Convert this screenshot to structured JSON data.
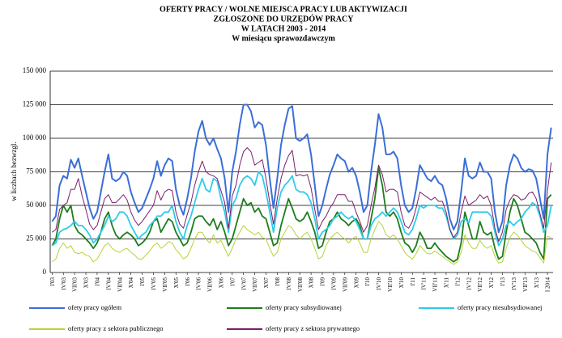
{
  "chart_data": {
    "type": "line",
    "title": [
      "OFERTY PRACY / WOLNE MIEJSCA  PRACY  LUB  AKTYWIZACJI",
      "ZGŁOSZONE  DO  URZĘDÓW  PRACY",
      "W  LATACH  2003 - 2014"
    ],
    "subtitle": "W  miesiącu  sprawozdawczym",
    "y_label": "w liczbach bezwzgl.",
    "categories": [
      "I'03",
      null,
      null,
      "IV'03",
      null,
      null,
      "VII'03",
      null,
      null,
      "X'03",
      null,
      null,
      "I'04",
      null,
      null,
      "IV'04",
      null,
      null,
      "VII'04",
      null,
      null,
      "X'04",
      null,
      null,
      "I'05",
      null,
      null,
      "IV'05",
      null,
      null,
      "VII'05",
      null,
      null,
      "X'05",
      null,
      null,
      "I'06",
      null,
      null,
      "IV'06",
      null,
      null,
      "VII'06",
      null,
      null,
      "X'06",
      null,
      null,
      "I'07",
      null,
      null,
      "IV'07",
      null,
      null,
      "VII'07",
      null,
      null,
      "X'07",
      null,
      null,
      "I'08",
      null,
      null,
      "IV'08",
      null,
      null,
      "VII'08",
      null,
      null,
      "X'08",
      null,
      null,
      "I'09",
      null,
      null,
      "IV'09",
      null,
      null,
      "VII'09",
      null,
      null,
      "X'09",
      null,
      null,
      "I'10",
      null,
      null,
      "IV'10",
      null,
      null,
      "VII'10",
      null,
      null,
      "X'10",
      null,
      null,
      "I'11",
      null,
      null,
      "IV'11",
      null,
      null,
      "VII'11",
      null,
      null,
      "X'11",
      null,
      null,
      "I'12",
      null,
      null,
      "IV'12",
      null,
      null,
      "VII'12",
      null,
      null,
      "X'12",
      null,
      null,
      "I'13",
      null,
      null,
      "IV'13",
      null,
      null,
      "VII'13",
      null,
      null,
      "X'13",
      null,
      null,
      "I 2014",
      null
    ],
    "series": [
      {
        "name": "ofety pracy ogółem",
        "color": "#3a6fd8",
        "values": [
          38000,
          42000,
          65000,
          72000,
          70000,
          84000,
          78000,
          85000,
          72000,
          60000,
          48000,
          40000,
          45000,
          60000,
          75000,
          88000,
          70000,
          68000,
          70000,
          75000,
          72000,
          60000,
          52000,
          45000,
          48000,
          55000,
          62000,
          70000,
          83000,
          72000,
          80000,
          85000,
          83000,
          62000,
          50000,
          43000,
          55000,
          70000,
          90000,
          105000,
          113000,
          100000,
          95000,
          100000,
          92000,
          85000,
          70000,
          45000,
          75000,
          90000,
          110000,
          125000,
          125000,
          120000,
          108000,
          112000,
          110000,
          95000,
          70000,
          48000,
          70000,
          95000,
          110000,
          122000,
          124000,
          100000,
          98000,
          100000,
          103000,
          88000,
          65000,
          42000,
          50000,
          62000,
          73000,
          80000,
          88000,
          85000,
          83000,
          75000,
          78000,
          72000,
          60000,
          45000,
          50000,
          75000,
          95000,
          118000,
          108000,
          88000,
          88000,
          90000,
          85000,
          65000,
          50000,
          45000,
          48000,
          62000,
          80000,
          75000,
          70000,
          68000,
          72000,
          67000,
          65000,
          55000,
          40000,
          32000,
          38000,
          60000,
          85000,
          72000,
          70000,
          72000,
          82000,
          75000,
          75000,
          70000,
          45000,
          30000,
          38000,
          65000,
          80000,
          88000,
          85000,
          78000,
          75000,
          77000,
          76000,
          70000,
          55000,
          40000,
          88000,
          108000
        ]
      },
      {
        "name": "oferty pracy subsydiowanej",
        "color": "#1e7d1e",
        "values": [
          20000,
          25000,
          40000,
          50000,
          45000,
          50000,
          35000,
          30000,
          28000,
          25000,
          22000,
          18000,
          22000,
          30000,
          40000,
          45000,
          35000,
          28000,
          25000,
          28000,
          30000,
          28000,
          25000,
          20000,
          22000,
          25000,
          30000,
          38000,
          40000,
          30000,
          35000,
          40000,
          38000,
          30000,
          25000,
          20000,
          22000,
          30000,
          40000,
          42000,
          42000,
          38000,
          35000,
          40000,
          32000,
          38000,
          30000,
          20000,
          25000,
          35000,
          45000,
          55000,
          50000,
          52000,
          45000,
          48000,
          42000,
          40000,
          30000,
          20000,
          22000,
          35000,
          45000,
          55000,
          48000,
          40000,
          38000,
          40000,
          45000,
          38000,
          30000,
          18000,
          20000,
          30000,
          38000,
          40000,
          45000,
          40000,
          38000,
          35000,
          38000,
          40000,
          35000,
          25000,
          25000,
          40000,
          55000,
          78000,
          65000,
          45000,
          42000,
          45000,
          40000,
          30000,
          22000,
          20000,
          15000,
          20000,
          30000,
          25000,
          18000,
          18000,
          22000,
          18000,
          15000,
          12000,
          10000,
          8000,
          10000,
          22000,
          45000,
          35000,
          25000,
          25000,
          38000,
          30000,
          28000,
          30000,
          18000,
          10000,
          12000,
          30000,
          45000,
          55000,
          50000,
          40000,
          30000,
          28000,
          25000,
          22000,
          15000,
          10000,
          55000,
          58000
        ]
      },
      {
        "name": "oferty pracy niesubsydiowanej",
        "color": "#2fcbea",
        "values": [
          20000,
          22000,
          30000,
          32000,
          33000,
          35000,
          38000,
          35000,
          35000,
          32000,
          28000,
          22000,
          25000,
          30000,
          35000,
          42000,
          38000,
          40000,
          45000,
          45000,
          42000,
          35000,
          30000,
          25000,
          28000,
          30000,
          35000,
          38000,
          42000,
          42000,
          45000,
          45000,
          50000,
          38000,
          30000,
          25000,
          35000,
          42000,
          52000,
          62000,
          70000,
          62000,
          60000,
          70000,
          68000,
          55000,
          45000,
          30000,
          50000,
          55000,
          65000,
          70000,
          72000,
          70000,
          65000,
          75000,
          72000,
          60000,
          45000,
          30000,
          48000,
          60000,
          65000,
          68000,
          72000,
          62000,
          60000,
          60000,
          58000,
          52000,
          40000,
          25000,
          30000,
          32000,
          35000,
          40000,
          42000,
          45000,
          42000,
          40000,
          42000,
          38000,
          32000,
          25000,
          25000,
          35000,
          40000,
          42000,
          45000,
          42000,
          45000,
          48000,
          45000,
          38000,
          30000,
          28000,
          32000,
          40000,
          50000,
          48000,
          50000,
          50000,
          50000,
          48000,
          48000,
          42000,
          32000,
          25000,
          28000,
          38000,
          40000,
          37000,
          45000,
          45000,
          45000,
          45000,
          45000,
          42000,
          30000,
          20000,
          25000,
          35000,
          38000,
          35000,
          38000,
          40000,
          45000,
          48000,
          52000,
          50000,
          42000,
          30000,
          35000,
          50000
        ]
      },
      {
        "name": "oferty pracy z sektora publicznego",
        "color": "#b5d43a",
        "values": [
          8000,
          10000,
          18000,
          22000,
          18000,
          20000,
          15000,
          14000,
          15000,
          13000,
          12000,
          8000,
          10000,
          15000,
          20000,
          22000,
          18000,
          16000,
          15000,
          17000,
          18000,
          15000,
          13000,
          10000,
          10000,
          13000,
          16000,
          20000,
          22000,
          18000,
          20000,
          23000,
          22000,
          17000,
          14000,
          10000,
          12000,
          18000,
          25000,
          30000,
          30000,
          25000,
          22000,
          28000,
          22000,
          24000,
          18000,
          12000,
          18000,
          25000,
          30000,
          35000,
          32000,
          30000,
          28000,
          30000,
          26000,
          25000,
          18000,
          12000,
          15000,
          25000,
          30000,
          35000,
          33000,
          28000,
          25000,
          28000,
          30000,
          25000,
          18000,
          10000,
          12000,
          20000,
          25000,
          28000,
          30000,
          27000,
          25000,
          22000,
          25000,
          27000,
          22000,
          15000,
          15000,
          25000,
          32000,
          38000,
          35000,
          28000,
          26000,
          28000,
          25000,
          20000,
          15000,
          12000,
          10000,
          14000,
          20000,
          17000,
          14000,
          14000,
          16000,
          14000,
          12000,
          10000,
          8000,
          6000,
          8000,
          15000,
          28000,
          22000,
          18000,
          18000,
          24000,
          20000,
          18000,
          20000,
          12000,
          7000,
          8000,
          18000,
          26000,
          30000,
          28000,
          24000,
          20000,
          18000,
          16000,
          15000,
          11000,
          7000,
          27000,
          26000
        ]
      },
      {
        "name": "oferty pracy z sektora prywatnego",
        "color": "#7a1f6b",
        "values": [
          30000,
          32000,
          47000,
          50000,
          52000,
          62000,
          62000,
          70000,
          57000,
          47000,
          36000,
          32000,
          35000,
          45000,
          55000,
          58000,
          52000,
          52000,
          55000,
          58000,
          54000,
          45000,
          39000,
          35000,
          38000,
          42000,
          46000,
          50000,
          61000,
          54000,
          60000,
          62000,
          61000,
          45000,
          36000,
          33000,
          43000,
          52000,
          65000,
          75000,
          83000,
          75000,
          73000,
          72000,
          70000,
          61000,
          52000,
          33000,
          57000,
          65000,
          80000,
          90000,
          93000,
          90000,
          80000,
          82000,
          84000,
          70000,
          52000,
          36000,
          55000,
          70000,
          80000,
          87000,
          91000,
          72000,
          73000,
          72000,
          73000,
          63000,
          47000,
          32000,
          38000,
          42000,
          48000,
          52000,
          58000,
          58000,
          58000,
          53000,
          53000,
          45000,
          38000,
          30000,
          35000,
          50000,
          63000,
          80000,
          73000,
          60000,
          62000,
          62000,
          60000,
          45000,
          35000,
          33000,
          38000,
          48000,
          60000,
          58000,
          56000,
          54000,
          56000,
          53000,
          53000,
          45000,
          32000,
          26000,
          30000,
          45000,
          57000,
          50000,
          52000,
          54000,
          58000,
          55000,
          57000,
          50000,
          33000,
          23000,
          30000,
          47000,
          54000,
          58000,
          57000,
          54000,
          55000,
          59000,
          60000,
          55000,
          44000,
          33000,
          61000,
          82000
        ]
      }
    ],
    "ylim": [
      0,
      150000
    ],
    "yticks": [
      0,
      {
        "value": 25000,
        "label": "25 000"
      },
      {
        "value": 50000,
        "label": "50 000"
      },
      {
        "value": 75000,
        "label": "75 000"
      },
      {
        "value": 100000,
        "label": "100 000"
      },
      {
        "value": 125000,
        "label": "125 000"
      },
      {
        "value": 150000,
        "label": "150 000"
      }
    ],
    "grid": true
  }
}
